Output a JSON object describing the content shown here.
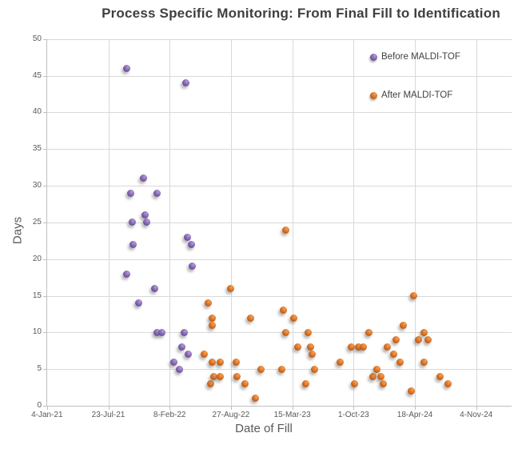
{
  "chart_data": {
    "type": "scatter",
    "title": "Process Specific Monitoring: From Final Fill to Identification",
    "xlabel": "Date of Fill",
    "ylabel": "Days",
    "ylim": [
      0,
      50
    ],
    "ytick_step": 5,
    "grid": true,
    "legend_position": "inside-top-right",
    "x_axis": {
      "tick_labels": [
        "4-Jan-21",
        "23-Jul-21",
        "8-Feb-22",
        "27-Aug-22",
        "15-Mar-23",
        "1-Oct-23",
        "18-Apr-24",
        "4-Nov-24"
      ],
      "units": "days since first tick",
      "days_per_interval": 200,
      "range_days": [
        0,
        1400
      ]
    },
    "series": [
      {
        "name": "Before MALDI-TOF",
        "color": "#7A5CA8",
        "highlight_color": "#B49BD8",
        "shadow_color": "#4E3878",
        "points": [
          [
            259,
            46
          ],
          [
            261,
            18
          ],
          [
            272,
            29
          ],
          [
            277,
            25
          ],
          [
            280,
            22
          ],
          [
            300,
            14
          ],
          [
            316,
            31
          ],
          [
            321,
            26
          ],
          [
            324,
            25
          ],
          [
            352,
            16
          ],
          [
            358,
            29
          ],
          [
            360,
            10
          ],
          [
            376,
            10
          ],
          [
            413,
            6
          ],
          [
            433,
            5
          ],
          [
            441,
            8
          ],
          [
            449,
            10
          ],
          [
            454,
            44
          ],
          [
            457,
            23
          ],
          [
            462,
            7
          ],
          [
            472,
            22
          ],
          [
            475,
            19
          ]
        ]
      },
      {
        "name": "After MALDI-TOF",
        "color": "#D2691E",
        "highlight_color": "#F4A055",
        "shadow_color": "#8A4408",
        "points": [
          [
            512,
            7
          ],
          [
            525,
            14
          ],
          [
            533,
            3
          ],
          [
            538,
            12
          ],
          [
            538,
            11
          ],
          [
            540,
            6
          ],
          [
            543,
            4
          ],
          [
            566,
            6
          ],
          [
            566,
            4
          ],
          [
            600,
            16
          ],
          [
            616,
            6
          ],
          [
            621,
            4
          ],
          [
            647,
            3
          ],
          [
            663,
            12
          ],
          [
            679,
            1
          ],
          [
            699,
            5
          ],
          [
            765,
            5
          ],
          [
            770,
            13
          ],
          [
            780,
            10
          ],
          [
            780,
            24
          ],
          [
            806,
            12
          ],
          [
            819,
            8
          ],
          [
            845,
            3
          ],
          [
            851,
            10
          ],
          [
            861,
            8
          ],
          [
            864,
            7
          ],
          [
            872,
            5
          ],
          [
            955,
            6
          ],
          [
            994,
            8
          ],
          [
            1004,
            3
          ],
          [
            1015,
            8
          ],
          [
            1033,
            8
          ],
          [
            1049,
            10
          ],
          [
            1064,
            4
          ],
          [
            1077,
            5
          ],
          [
            1088,
            4
          ],
          [
            1096,
            3
          ],
          [
            1109,
            8
          ],
          [
            1132,
            7
          ],
          [
            1140,
            9
          ],
          [
            1151,
            6
          ],
          [
            1161,
            11
          ],
          [
            1187,
            2
          ],
          [
            1195,
            15
          ],
          [
            1213,
            9
          ],
          [
            1231,
            6
          ],
          [
            1231,
            10
          ],
          [
            1242,
            9
          ],
          [
            1281,
            4
          ],
          [
            1307,
            3
          ]
        ]
      }
    ]
  }
}
